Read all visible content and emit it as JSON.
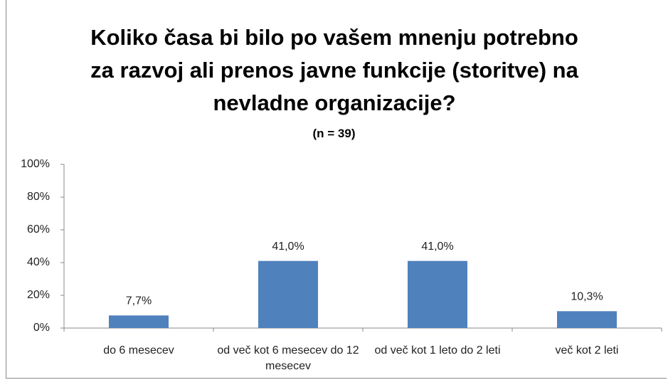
{
  "chart_data": {
    "type": "bar",
    "title": "Koliko časa bi bilo po vašem mnenju potrebno za razvoj ali prenos javne funkcije (storitve) na nevladne organizacije?",
    "subtitle": "(n = 39)",
    "categories": [
      "do 6 mesecev",
      "od več kot 6 mesecev do 12 mesecev",
      "od več kot 1 leto do 2 leti",
      "več kot 2 leti"
    ],
    "values": [
      7.7,
      41.0,
      41.0,
      10.3
    ],
    "value_labels": [
      "7,7%",
      "41,0%",
      "41,0%",
      "10,3%"
    ],
    "color": "#4f81bd",
    "ylim": [
      0,
      100
    ],
    "yticks": [
      {
        "value": 0,
        "label": "0%"
      },
      {
        "value": 20,
        "label": "20%"
      },
      {
        "value": 40,
        "label": "40%"
      },
      {
        "value": 60,
        "label": "60%"
      },
      {
        "value": 80,
        "label": "80%"
      },
      {
        "value": 100,
        "label": "100%"
      }
    ],
    "grid": false
  }
}
